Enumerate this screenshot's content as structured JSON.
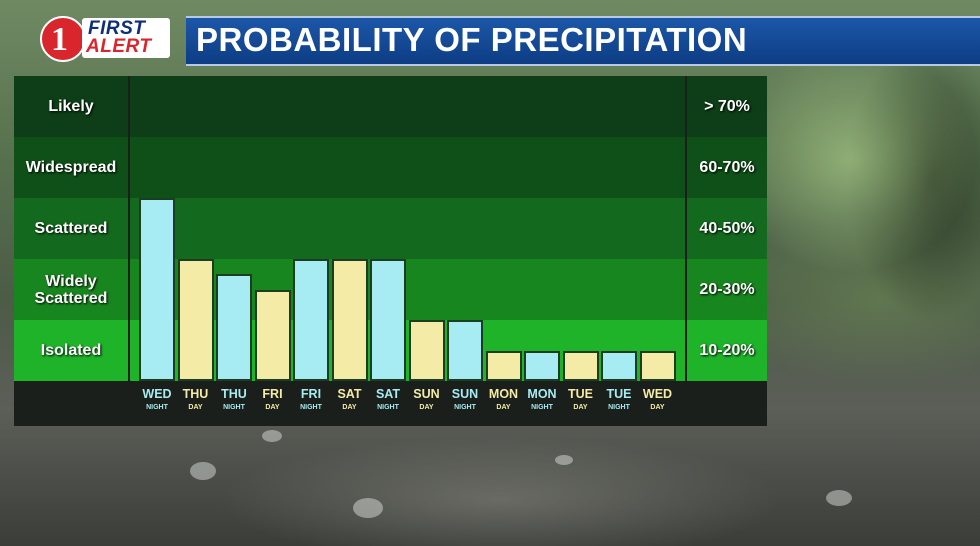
{
  "header": {
    "logo_number": "1",
    "logo_line1": "FIRST",
    "logo_line2": "ALERT",
    "title": "PROBABILITY OF PRECIPITATION"
  },
  "colors": {
    "night_bar": "#a6ecf2",
    "day_bar": "#f4eca6",
    "band_shades": [
      "#0d3e17",
      "#0e5017",
      "#13691d",
      "#18861f",
      "#1fb32a"
    ],
    "title_bar": "#1452a0"
  },
  "chart_data": {
    "type": "bar",
    "title": "PROBABILITY OF PRECIPITATION",
    "xlabel": "",
    "ylabel": "",
    "ylim": [
      0,
      100
    ],
    "categories": [
      {
        "day": "WED",
        "period": "NIGHT"
      },
      {
        "day": "THU",
        "period": "DAY"
      },
      {
        "day": "THU",
        "period": "NIGHT"
      },
      {
        "day": "FRI",
        "period": "DAY"
      },
      {
        "day": "FRI",
        "period": "NIGHT"
      },
      {
        "day": "SAT",
        "period": "DAY"
      },
      {
        "day": "SAT",
        "period": "NIGHT"
      },
      {
        "day": "SUN",
        "period": "DAY"
      },
      {
        "day": "SUN",
        "period": "NIGHT"
      },
      {
        "day": "MON",
        "period": "DAY"
      },
      {
        "day": "MON",
        "period": "NIGHT"
      },
      {
        "day": "TUE",
        "period": "DAY"
      },
      {
        "day": "TUE",
        "period": "NIGHT"
      },
      {
        "day": "WED",
        "period": "DAY"
      }
    ],
    "values": [
      50,
      30,
      25,
      20,
      30,
      30,
      30,
      10,
      10,
      5,
      5,
      5,
      5,
      5
    ],
    "bands": [
      {
        "label": "Likely",
        "range": "> 70%"
      },
      {
        "label": "Widespread",
        "range": "60-70%"
      },
      {
        "label": "Scattered",
        "range": "40-50%"
      },
      {
        "label": "Widely Scattered",
        "range": "20-30%"
      },
      {
        "label": "Isolated",
        "range": "10-20%"
      }
    ],
    "band_boundaries": [
      0,
      10,
      30,
      50,
      70,
      90
    ]
  }
}
